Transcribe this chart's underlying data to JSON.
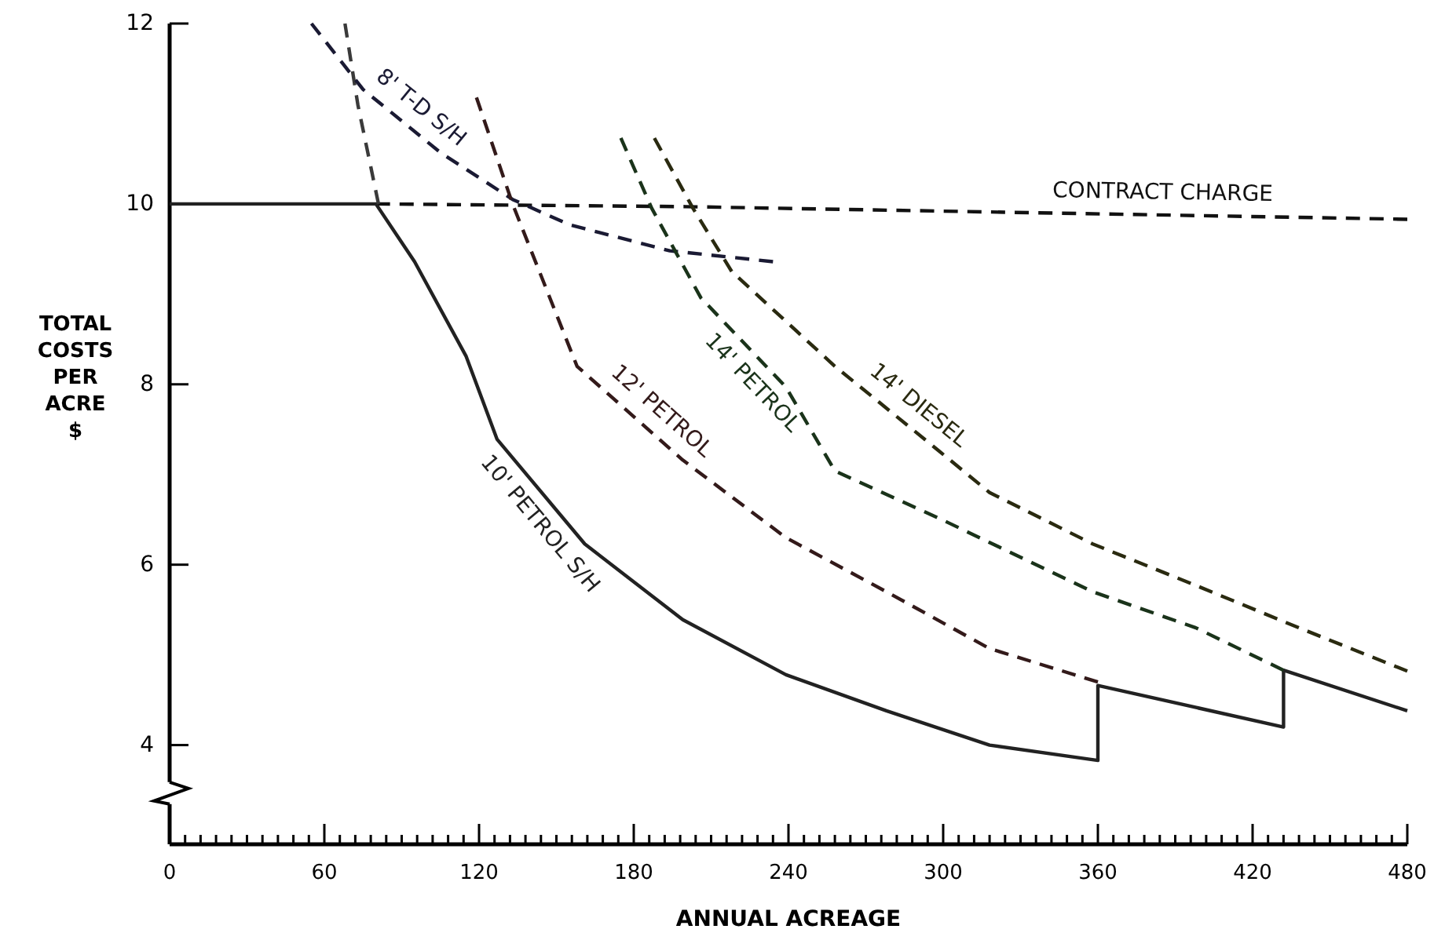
{
  "chart_data": {
    "type": "line",
    "xlabel": "ANNUAL ACREAGE",
    "ylabel": "TOTAL\nCOSTS\nPER\nACRE\n$",
    "xlim": [
      0,
      480
    ],
    "ylim": [
      2.9,
      12
    ],
    "grid": false,
    "legend": false,
    "marker": "none",
    "xticks": [
      0,
      {
        "value": 6,
        "label": null
      },
      {
        "value": 12,
        "label": null
      },
      {
        "value": 18,
        "label": null
      },
      {
        "value": 24,
        "label": null
      },
      {
        "value": 30,
        "label": null
      },
      {
        "value": 36,
        "label": null
      },
      {
        "value": 42,
        "label": null
      },
      {
        "value": 48,
        "label": null
      },
      {
        "value": 54,
        "label": null
      },
      60,
      {
        "value": 66,
        "label": null
      },
      {
        "value": 72,
        "label": null
      },
      {
        "value": 78,
        "label": null
      },
      {
        "value": 84,
        "label": null
      },
      {
        "value": 90,
        "label": null
      },
      {
        "value": 96,
        "label": null
      },
      {
        "value": 102,
        "label": null
      },
      {
        "value": 108,
        "label": null
      },
      {
        "value": 114,
        "label": null
      },
      120,
      {
        "value": 126,
        "label": null
      },
      {
        "value": 132,
        "label": null
      },
      {
        "value": 138,
        "label": null
      },
      {
        "value": 144,
        "label": null
      },
      {
        "value": 150,
        "label": null
      },
      {
        "value": 156,
        "label": null
      },
      {
        "value": 162,
        "label": null
      },
      {
        "value": 168,
        "label": null
      },
      {
        "value": 174,
        "label": null
      },
      180,
      {
        "value": 186,
        "label": null
      },
      {
        "value": 192,
        "label": null
      },
      {
        "value": 198,
        "label": null
      },
      {
        "value": 204,
        "label": null
      },
      {
        "value": 210,
        "label": null
      },
      {
        "value": 216,
        "label": null
      },
      {
        "value": 222,
        "label": null
      },
      {
        "value": 228,
        "label": null
      },
      {
        "value": 234,
        "label": null
      },
      240,
      {
        "value": 246,
        "label": null
      },
      {
        "value": 252,
        "label": null
      },
      {
        "value": 258,
        "label": null
      },
      {
        "value": 264,
        "label": null
      },
      {
        "value": 270,
        "label": null
      },
      {
        "value": 276,
        "label": null
      },
      {
        "value": 282,
        "label": null
      },
      {
        "value": 288,
        "label": null
      },
      {
        "value": 294,
        "label": null
      },
      300,
      {
        "value": 306,
        "label": null
      },
      {
        "value": 312,
        "label": null
      },
      {
        "value": 318,
        "label": null
      },
      {
        "value": 324,
        "label": null
      },
      {
        "value": 330,
        "label": null
      },
      {
        "value": 336,
        "label": null
      },
      {
        "value": 342,
        "label": null
      },
      {
        "value": 348,
        "label": null
      },
      {
        "value": 354,
        "label": null
      },
      360,
      {
        "value": 366,
        "label": null
      },
      {
        "value": 372,
        "label": null
      },
      {
        "value": 378,
        "label": null
      },
      {
        "value": 384,
        "label": null
      },
      {
        "value": 390,
        "label": null
      },
      {
        "value": 396,
        "label": null
      },
      {
        "value": 402,
        "label": null
      },
      {
        "value": 408,
        "label": null
      },
      {
        "value": 414,
        "label": null
      },
      420,
      {
        "value": 426,
        "label": null
      },
      {
        "value": 432,
        "label": null
      },
      {
        "value": 438,
        "label": null
      },
      {
        "value": 444,
        "label": null
      },
      {
        "value": 450,
        "label": null
      },
      {
        "value": 456,
        "label": null
      },
      {
        "value": 462,
        "label": null
      },
      {
        "value": 468,
        "label": null
      },
      {
        "value": 474,
        "label": null
      },
      480
    ],
    "yticks": [
      4,
      6,
      8,
      10,
      12
    ],
    "series": [
      {
        "name": "CONTRACT CHARGE",
        "color": "#111111",
        "line_style": "dashed",
        "x": [
          80,
          200,
          480
        ],
        "values": [
          10,
          9.97,
          9.83
        ]
      },
      {
        "name": "10' PETROL S/H",
        "color": "#222222",
        "line_style": "solid",
        "x": [
          0,
          80,
          95,
          115,
          127,
          161,
          199,
          239,
          278,
          318,
          360,
          360,
          432,
          432,
          480
        ],
        "values": [
          10,
          10,
          9.36,
          8.31,
          7.39,
          6.23,
          5.39,
          4.78,
          4.38,
          4.0,
          3.83,
          4.66,
          4.2,
          4.83,
          4.38
        ]
      },
      {
        "color": "#3a3a3a",
        "line_style": "dashed",
        "x": [
          68,
          73,
          81
        ],
        "values": [
          12,
          11.1,
          10
        ]
      },
      {
        "name": "8' T-D S/H",
        "color": "#1a1a33",
        "line_style": "dashed",
        "x": [
          55,
          75,
          105,
          133,
          155,
          194,
          234
        ],
        "values": [
          12,
          11.27,
          10.57,
          10.05,
          9.77,
          9.48,
          9.36
        ]
      },
      {
        "name": "12' PETROL",
        "color": "#331a1a",
        "line_style": "dashed",
        "x": [
          119,
          133,
          158,
          199,
          239,
          278,
          318,
          360
        ],
        "values": [
          11.18,
          10,
          8.2,
          7.16,
          6.3,
          5.7,
          5.07,
          4.7
        ]
      },
      {
        "name": "14' PETROL",
        "color": "#1a331a",
        "line_style": "dashed",
        "x": [
          175,
          187,
          206,
          239,
          258,
          298,
          358,
          398,
          432
        ],
        "values": [
          10.73,
          9.95,
          8.96,
          7.97,
          7.04,
          6.52,
          5.7,
          5.3,
          4.83
        ]
      },
      {
        "name": "14' DIESEL",
        "color": "#2a2a10",
        "line_style": "dashed",
        "x": [
          188,
          203,
          218,
          258,
          298,
          318,
          358,
          398,
          438,
          480
        ],
        "values": [
          10.73,
          9.95,
          9.25,
          8.2,
          7.27,
          6.8,
          6.23,
          5.77,
          5.3,
          4.82
        ]
      }
    ]
  }
}
